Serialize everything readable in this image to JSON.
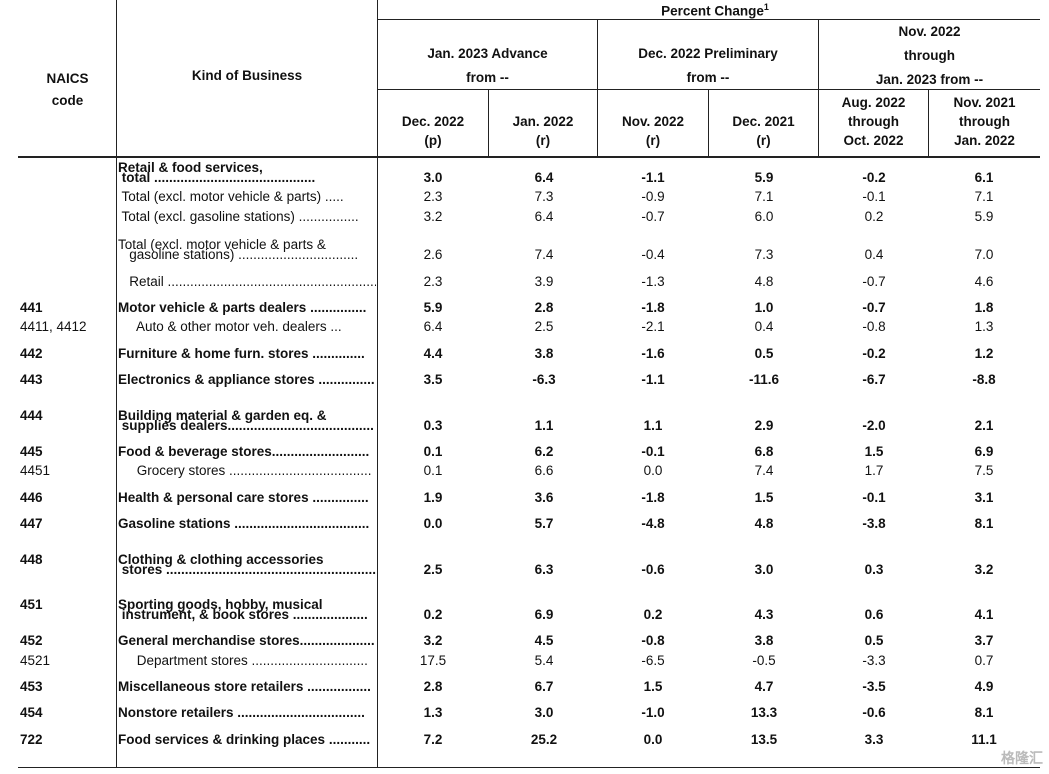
{
  "header": {
    "percent_change": "Percent Change",
    "superscript": "1",
    "naics_line1": "NAICS",
    "naics_line2": "code",
    "kind_of_business": "Kind of Business",
    "groups": [
      {
        "line1": "Jan. 2023 Advance",
        "line2": "from --"
      },
      {
        "line1": "Dec. 2022 Preliminary",
        "line2": "from --"
      },
      {
        "line1": "Nov. 2022",
        "line2": "through",
        "line3": "Jan. 2023 from --"
      }
    ],
    "columns": [
      {
        "line1": "Dec. 2022",
        "line2": "(p)"
      },
      {
        "line1": "Jan. 2022",
        "line2": "(r)"
      },
      {
        "line1": "Nov. 2022",
        "line2": "(r)"
      },
      {
        "line1": "Dec. 2021",
        "line2": "(r)"
      },
      {
        "line1": "Aug. 2022",
        "line2": "through",
        "line3": "Oct. 2022"
      },
      {
        "line1": "Nov. 2021",
        "line2": "through",
        "line3": "Jan. 2022"
      }
    ]
  },
  "rows": [
    {
      "code": "",
      "label1": "Retail & food services,",
      "label2": " total ...........................................",
      "bold": true,
      "values": [
        "3.0",
        "6.4",
        "-1.1",
        "5.9",
        "-0.2",
        "6.1"
      ]
    },
    {
      "code": "",
      "label2": " Total (excl. motor vehicle & parts) .....",
      "bold": false,
      "values": [
        "2.3",
        "7.3",
        "-0.9",
        "7.1",
        "-0.1",
        "7.1"
      ]
    },
    {
      "code": "",
      "label2": " Total (excl. gasoline stations) ................",
      "bold": false,
      "values": [
        "3.2",
        "6.4",
        "-0.7",
        "6.0",
        "0.2",
        "5.9"
      ]
    },
    {
      "code": "",
      "label1": " Total (excl. motor vehicle & parts &",
      "label2": "   gasoline stations) ................................",
      "bold": false,
      "values": [
        "2.6",
        "7.4",
        "-0.4",
        "7.3",
        "0.4",
        "7.0"
      ]
    },
    {
      "code": "",
      "label2": "   Retail .........................................................",
      "bold": false,
      "values": [
        "2.3",
        "3.9",
        "-1.3",
        "4.8",
        "-0.7",
        "4.6"
      ]
    },
    {
      "code": "441",
      "label2": "Motor vehicle & parts dealers ...............",
      "bold": true,
      "values": [
        "5.9",
        "2.8",
        "-1.8",
        "1.0",
        "-0.7",
        "1.8"
      ]
    },
    {
      "code": "4411, 4412",
      "label2": "     Auto & other motor veh. dealers ...",
      "bold": false,
      "values": [
        "6.4",
        "2.5",
        "-2.1",
        "0.4",
        "-0.8",
        "1.3"
      ]
    },
    {
      "code": "442",
      "label2": "Furniture & home furn. stores ..............",
      "bold": true,
      "values": [
        "4.4",
        "3.8",
        "-1.6",
        "0.5",
        "-0.2",
        "1.2"
      ]
    },
    {
      "code": "443",
      "label2": "Electronics & appliance stores ...............",
      "bold": true,
      "values": [
        "3.5",
        "-6.3",
        "-1.1",
        "-11.6",
        "-6.7",
        "-8.8"
      ]
    },
    {
      "code": "444",
      "label1": "Building material & garden eq. &",
      "label2": " supplies dealers.......................................",
      "bold": true,
      "values": [
        "0.3",
        "1.1",
        "1.1",
        "2.9",
        "-2.0",
        "2.1"
      ]
    },
    {
      "code": "445",
      "label2": "Food & beverage stores..........................",
      "bold": true,
      "values": [
        "0.1",
        "6.2",
        "-0.1",
        "6.8",
        "1.5",
        "6.9"
      ]
    },
    {
      "code": "4451",
      "label2": "     Grocery stores ......................................",
      "bold": false,
      "values": [
        "0.1",
        "6.6",
        "0.0",
        "7.4",
        "1.7",
        "7.5"
      ]
    },
    {
      "code": "446",
      "label2": "Health & personal care stores ...............",
      "bold": true,
      "values": [
        "1.9",
        "3.6",
        "-1.8",
        "1.5",
        "-0.1",
        "3.1"
      ]
    },
    {
      "code": "447",
      "label2": "Gasoline stations ....................................",
      "bold": true,
      "values": [
        "0.0",
        "5.7",
        "-4.8",
        "4.8",
        "-3.8",
        "8.1"
      ]
    },
    {
      "code": "448",
      "label1": "Clothing & clothing accessories",
      "label2": " stores ............................................................",
      "bold": true,
      "values": [
        "2.5",
        "6.3",
        "-0.6",
        "3.0",
        "0.3",
        "3.2"
      ]
    },
    {
      "code": "451",
      "label1": "Sporting goods, hobby, musical",
      "label2": " instrument, & book stores ....................",
      "bold": true,
      "values": [
        "0.2",
        "6.9",
        "0.2",
        "4.3",
        "0.6",
        "4.1"
      ]
    },
    {
      "code": "452",
      "label2": "General merchandise stores....................",
      "bold": true,
      "values": [
        "3.2",
        "4.5",
        "-0.8",
        "3.8",
        "0.5",
        "3.7"
      ]
    },
    {
      "code": "4521",
      "label2": "     Department stores ...............................",
      "bold": false,
      "values": [
        "17.5",
        "5.4",
        "-6.5",
        "-0.5",
        "-3.3",
        "0.7"
      ]
    },
    {
      "code": "453",
      "label2": "Miscellaneous store retailers .................",
      "bold": true,
      "values": [
        "2.8",
        "6.7",
        "1.5",
        "4.7",
        "-3.5",
        "4.9"
      ]
    },
    {
      "code": "454",
      "label2": "Nonstore retailers ..................................",
      "bold": true,
      "values": [
        "1.3",
        "3.0",
        "-1.0",
        "13.3",
        "-0.6",
        "8.1"
      ]
    },
    {
      "code": "722",
      "label2": "Food services & drinking places ...........",
      "bold": true,
      "values": [
        "7.2",
        "25.2",
        "0.0",
        "13.5",
        "3.3",
        "11.1"
      ]
    }
  ],
  "watermark": "格隆汇"
}
